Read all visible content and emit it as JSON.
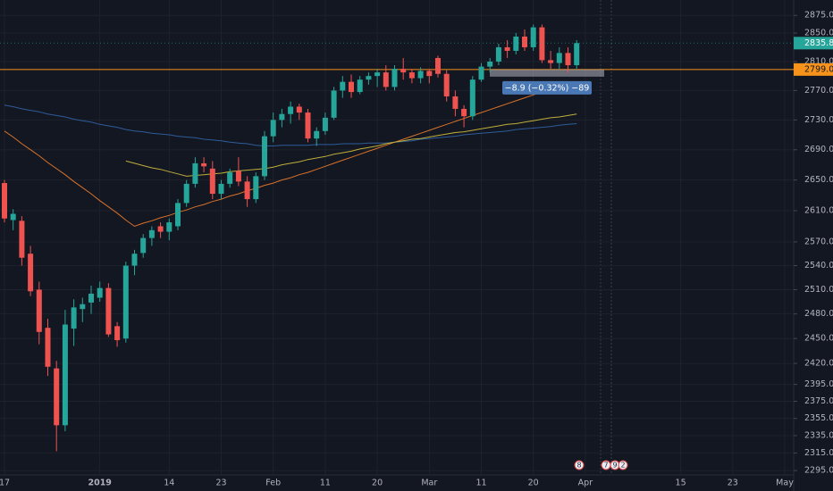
{
  "chart_data": {
    "type": "candlestick",
    "log_scale": true,
    "grid": true,
    "ylim": [
      2290,
      2897
    ],
    "yticks": [
      {
        "value": 2875,
        "label": "2875.0"
      },
      {
        "value": 2850,
        "label": "2850.0"
      },
      {
        "value": 2810,
        "label": "2810.0"
      },
      {
        "value": 2770,
        "label": "2770.0"
      },
      {
        "value": 2730,
        "label": "2730.0"
      },
      {
        "value": 2690,
        "label": "2690.0"
      },
      {
        "value": 2650,
        "label": "2650.0"
      },
      {
        "value": 2610,
        "label": "2610.0"
      },
      {
        "value": 2570,
        "label": "2570.0"
      },
      {
        "value": 2540,
        "label": "2540.0"
      },
      {
        "value": 2510,
        "label": "2510.0"
      },
      {
        "value": 2480,
        "label": "2480.0"
      },
      {
        "value": 2450,
        "label": "2450.0"
      },
      {
        "value": 2420,
        "label": "2420.0"
      },
      {
        "value": 2395,
        "label": "2395.0"
      },
      {
        "value": 2375,
        "label": "2375.0"
      },
      {
        "value": 2355,
        "label": "2355.0"
      },
      {
        "value": 2335,
        "label": "2335.0"
      },
      {
        "value": 2315,
        "label": "2315.0"
      },
      {
        "value": 2295,
        "label": "2295.0"
      }
    ],
    "categories": [
      "17",
      null,
      null,
      null,
      null,
      null,
      null,
      null,
      null,
      null,
      null,
      "2019",
      null,
      null,
      null,
      null,
      null,
      null,
      null,
      "14",
      null,
      null,
      null,
      null,
      null,
      "23",
      null,
      null,
      null,
      null,
      null,
      "Feb",
      null,
      null,
      null,
      null,
      null,
      "11",
      null,
      null,
      null,
      null,
      null,
      "20",
      null,
      null,
      null,
      null,
      null,
      "Mar",
      null,
      null,
      null,
      null,
      null,
      "11",
      null,
      null,
      null,
      null,
      null,
      "20",
      null,
      null,
      null,
      null,
      null,
      "Apr",
      null,
      null,
      null,
      null,
      null,
      null,
      null,
      null,
      null,
      null,
      "15",
      null,
      null,
      null,
      null,
      null,
      "23",
      null,
      null,
      null,
      null,
      null,
      "May",
      null,
      null,
      null,
      null
    ],
    "up_color": "#26a69a",
    "down_color": "#ef5350",
    "open": [
      2646,
      2598,
      2597,
      2555,
      2510,
      2463,
      2414,
      2347,
      2462,
      2486,
      2494,
      2500,
      2512,
      2465,
      2450,
      2540,
      2556,
      2575,
      2590,
      2583,
      2590,
      2620,
      2645,
      2672,
      2665,
      2632,
      2645,
      2662,
      2648,
      2625,
      2655,
      2708,
      2730,
      2738,
      2748,
      2740,
      2705,
      2715,
      2733,
      2770,
      2782,
      2768,
      2785,
      2790,
      2795,
      2775,
      2800,
      2795,
      2787,
      2797,
      2815,
      2793,
      2762,
      2745,
      2735,
      2785,
      2803,
      2810,
      2830,
      2825,
      2845,
      2830,
      2858,
      2812,
      2808,
      2822,
      2805,
      null,
      null,
      null,
      null,
      null,
      null,
      null,
      null,
      null,
      null,
      null,
      null,
      null,
      null,
      null,
      null,
      null,
      null,
      null,
      null,
      null,
      null,
      null,
      null,
      null,
      null,
      null,
      null
    ],
    "high": [
      2650,
      2612,
      2603,
      2565,
      2520,
      2474,
      2423,
      2485,
      2498,
      2500,
      2515,
      2520,
      2518,
      2470,
      2545,
      2560,
      2580,
      2590,
      2595,
      2600,
      2625,
      2650,
      2680,
      2680,
      2675,
      2650,
      2665,
      2680,
      2655,
      2660,
      2715,
      2740,
      2745,
      2755,
      2752,
      2745,
      2720,
      2740,
      2775,
      2790,
      2792,
      2790,
      2795,
      2800,
      2805,
      2805,
      2815,
      2800,
      2802,
      2800,
      2818,
      2798,
      2770,
      2750,
      2790,
      2808,
      2815,
      2835,
      2840,
      2850,
      2855,
      2862,
      2862,
      2825,
      2830,
      2830,
      2840,
      null,
      null,
      null,
      null,
      null,
      null,
      null,
      null,
      null,
      null,
      null,
      null,
      null,
      null,
      null,
      null,
      null,
      null,
      null,
      null,
      null,
      null,
      null,
      null,
      null,
      null,
      null,
      null
    ],
    "low": [
      2595,
      2585,
      2540,
      2502,
      2443,
      2405,
      2317,
      2340,
      2441,
      2470,
      2480,
      2495,
      2452,
      2440,
      2445,
      2528,
      2550,
      2565,
      2575,
      2572,
      2585,
      2615,
      2640,
      2660,
      2625,
      2625,
      2640,
      2642,
      2615,
      2620,
      2650,
      2700,
      2720,
      2725,
      2730,
      2700,
      2695,
      2710,
      2730,
      2760,
      2760,
      2765,
      2778,
      2775,
      2770,
      2770,
      2785,
      2780,
      2780,
      2780,
      2788,
      2755,
      2735,
      2720,
      2730,
      2782,
      2795,
      2805,
      2815,
      2820,
      2825,
      2825,
      2808,
      2800,
      2800,
      2795,
      2800,
      null,
      null,
      null,
      null,
      null,
      null,
      null,
      null,
      null,
      null,
      null,
      null,
      null,
      null,
      null,
      null,
      null,
      null,
      null,
      null,
      null,
      null,
      null,
      null,
      null,
      null,
      null,
      null
    ],
    "close": [
      2600,
      2606,
      2550,
      2508,
      2458,
      2416,
      2347,
      2467,
      2488,
      2492,
      2505,
      2512,
      2455,
      2448,
      2540,
      2555,
      2575,
      2585,
      2583,
      2595,
      2620,
      2645,
      2672,
      2668,
      2632,
      2645,
      2660,
      2648,
      2625,
      2655,
      2708,
      2730,
      2738,
      2748,
      2740,
      2705,
      2715,
      2733,
      2770,
      2782,
      2768,
      2785,
      2790,
      2795,
      2775,
      2800,
      2795,
      2787,
      2797,
      2790,
      2793,
      2762,
      2745,
      2735,
      2785,
      2803,
      2810,
      2830,
      2825,
      2845,
      2830,
      2858,
      2812,
      2808,
      2822,
      2805,
      2835.8,
      null,
      null,
      null,
      null,
      null,
      null,
      null,
      null,
      null,
      null,
      null,
      null,
      null,
      null,
      null,
      null,
      null,
      null,
      null,
      null,
      null,
      null,
      null,
      null,
      null,
      null,
      null,
      null
    ],
    "lines": [
      {
        "color": "#2e5c9a",
        "values": [
          2750,
          2748,
          2745,
          2743,
          2741,
          2738,
          2736,
          2734,
          2731,
          2729,
          2727,
          2724,
          2722,
          2720,
          2717,
          2715,
          2714,
          2712,
          2711,
          2710,
          2708,
          2707,
          2706,
          2704,
          2703,
          2702,
          2700,
          2699,
          2698,
          2696,
          2695,
          2695,
          2696,
          2696,
          2696,
          2696,
          2697,
          2697,
          2697,
          2698,
          2698,
          2698,
          2699,
          2699,
          2699,
          2700,
          2701,
          2702,
          2704,
          2705,
          2706,
          2707,
          2708,
          2710,
          2711,
          2712,
          2713,
          2714,
          2715,
          2717,
          2718,
          2719,
          2720,
          2721,
          2723,
          2724,
          2725,
          null,
          null,
          null,
          null,
          null,
          null,
          null,
          null,
          null,
          null,
          null,
          null,
          null,
          null,
          null,
          null,
          null,
          null,
          null,
          null,
          null,
          null,
          null,
          null,
          null,
          null,
          null,
          null
        ]
      },
      {
        "color": "#d8722a",
        "values": [
          2715,
          2707,
          2698,
          2690,
          2682,
          2673,
          2665,
          2657,
          2648,
          2640,
          2632,
          2623,
          2615,
          2607,
          2598,
          2590,
          2594,
          2597,
          2601,
          2604,
          2608,
          2611,
          2615,
          2618,
          2622,
          2625,
          2629,
          2632,
          2636,
          2639,
          2643,
          2646,
          2650,
          2653,
          2657,
          2660,
          2664,
          2668,
          2672,
          2676,
          2680,
          2684,
          2688,
          2692,
          2696,
          2700,
          2704,
          2708,
          2712,
          2716,
          2720,
          2724,
          2728,
          2732,
          2736,
          2740,
          2744,
          2748,
          2752,
          2756,
          2760,
          2764,
          2768,
          2770,
          2772,
          2773,
          2775,
          null,
          null,
          null,
          null,
          null,
          null,
          null,
          null,
          null,
          null,
          null,
          null,
          null,
          null,
          null,
          null,
          null,
          null,
          null,
          null,
          null,
          null,
          null,
          null,
          null,
          null,
          null,
          null
        ]
      },
      {
        "color": "#bfae3a",
        "values": [
          null,
          null,
          null,
          null,
          null,
          null,
          null,
          null,
          null,
          null,
          null,
          null,
          null,
          null,
          2675,
          2672,
          2669,
          2666,
          2664,
          2661,
          2658,
          2655,
          2656,
          2657,
          2658,
          2659,
          2661,
          2662,
          2663,
          2664,
          2665,
          2667,
          2670,
          2672,
          2674,
          2677,
          2679,
          2681,
          2684,
          2686,
          2688,
          2691,
          2693,
          2695,
          2698,
          2700,
          2702,
          2704,
          2705,
          2707,
          2709,
          2711,
          2713,
          2714,
          2716,
          2718,
          2720,
          2722,
          2724,
          2725,
          2727,
          2729,
          2731,
          2733,
          2734,
          2736,
          2738,
          null,
          null,
          null,
          null,
          null,
          null,
          null,
          null,
          null,
          null,
          null,
          null,
          null,
          null,
          null,
          null,
          null,
          null,
          null,
          null,
          null,
          null,
          null,
          null,
          null,
          null,
          null,
          null
        ]
      }
    ],
    "last_price": {
      "value": 2835.8,
      "label": "2835.8",
      "color": "#26a69a"
    },
    "hline": {
      "value": 2799.0,
      "label": "2799.0",
      "color": "#f7931a"
    },
    "measure": "−8.9 (−0.32%) −89",
    "events": [
      "8",
      "7",
      "9",
      "2"
    ]
  }
}
